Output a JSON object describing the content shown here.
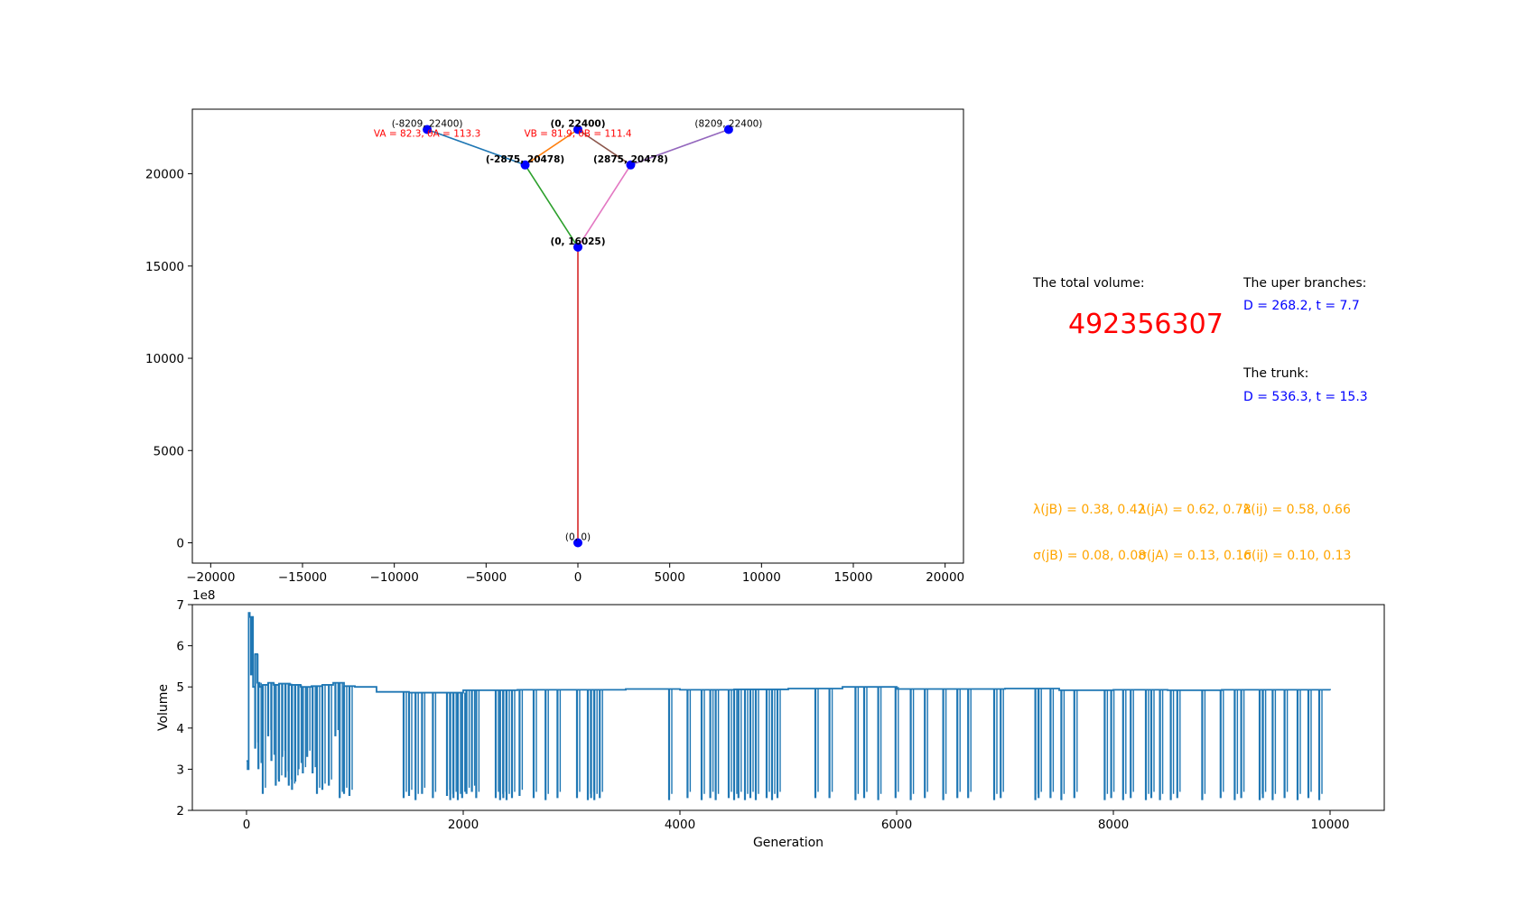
{
  "chart_data": [
    {
      "type": "network",
      "xlim": [
        -21000,
        21000
      ],
      "ylim": [
        -1100,
        23500
      ],
      "xticks": [
        -20000,
        -15000,
        -10000,
        -5000,
        0,
        5000,
        10000,
        15000,
        20000
      ],
      "xtick_labels": [
        "−20000",
        "−15000",
        "−10000",
        "−5000",
        "0",
        "5000",
        "10000",
        "15000",
        "20000"
      ],
      "yticks": [
        0,
        5000,
        10000,
        15000,
        20000
      ],
      "ytick_labels": [
        "0",
        "5000",
        "10000",
        "15000",
        "20000"
      ],
      "nodes": [
        {
          "x": 0,
          "y": 0,
          "label": "(0, 0)",
          "bold": false
        },
        {
          "x": 0,
          "y": 16025,
          "label": "(0, 16025)",
          "bold": true
        },
        {
          "x": -2875,
          "y": 20478,
          "label": "(-2875, 20478)",
          "bold": true
        },
        {
          "x": 2875,
          "y": 20478,
          "label": "(2875, 20478)",
          "bold": true
        },
        {
          "x": -8209,
          "y": 22400,
          "label": "(-8209, 22400)",
          "bold": false
        },
        {
          "x": 0,
          "y": 22400,
          "label": "(0, 22400)",
          "bold": true
        },
        {
          "x": 8209,
          "y": 22400,
          "label": "(8209, 22400)",
          "bold": false
        }
      ],
      "edges": [
        {
          "from": [
            0,
            0
          ],
          "to": [
            0,
            16025
          ],
          "color": "#d62728"
        },
        {
          "from": [
            0,
            16025
          ],
          "to": [
            -2875,
            20478
          ],
          "color": "#2ca02c"
        },
        {
          "from": [
            0,
            16025
          ],
          "to": [
            2875,
            20478
          ],
          "color": "#e377c2"
        },
        {
          "from": [
            -2875,
            20478
          ],
          "to": [
            -8209,
            22400
          ],
          "color": "#1f77b4"
        },
        {
          "from": [
            -2875,
            20478
          ],
          "to": [
            0,
            22400
          ],
          "color": "#ff7f0e"
        },
        {
          "from": [
            2875,
            20478
          ],
          "to": [
            0,
            22400
          ],
          "color": "#8c564b"
        },
        {
          "from": [
            2875,
            20478
          ],
          "to": [
            8209,
            22400
          ],
          "color": "#9467bd"
        }
      ],
      "annotations": [
        {
          "text": "VA = 82.3, θA = 113.3",
          "x": -8209,
          "y": 22400,
          "color": "#ff0000"
        },
        {
          "text": "VB = 81.9, θB = 111.4",
          "x": 0,
          "y": 22400,
          "color": "#ff0000"
        }
      ],
      "node_color": "#0000ff"
    },
    {
      "type": "line",
      "xlabel": "Generation",
      "ylabel": "Volume",
      "xlim": [
        -500,
        10500
      ],
      "ylim": [
        2,
        7
      ],
      "y_scale_label": "1e8",
      "xticks": [
        0,
        2000,
        4000,
        6000,
        8000,
        10000
      ],
      "xtick_labels": [
        "0",
        "2000",
        "4000",
        "6000",
        "8000",
        "10000"
      ],
      "yticks": [
        2,
        3,
        4,
        5,
        6,
        7
      ],
      "ytick_labels": [
        "2",
        "3",
        "4",
        "5",
        "6",
        "7"
      ],
      "color": "#1f77b4",
      "series": [
        {
          "x": [
            0,
            10,
            20,
            30,
            40,
            50,
            60,
            80,
            100,
            120,
            150,
            200,
            250,
            300,
            400,
            500,
            600,
            700,
            800,
            900,
            1000,
            1200,
            1500,
            2000,
            2500,
            3000,
            3500,
            4000,
            4500,
            5000,
            5500,
            6000,
            6500,
            7000,
            7500,
            8000,
            8500,
            9000,
            9500,
            10000
          ],
          "y": [
            3.2,
            3.0,
            6.8,
            6.7,
            5.3,
            6.7,
            5.0,
            5.8,
            5.1,
            5.0,
            5.05,
            5.1,
            5.05,
            5.08,
            5.05,
            5.0,
            5.02,
            5.05,
            5.1,
            5.02,
            5.0,
            4.88,
            4.86,
            4.92,
            4.93,
            4.93,
            4.95,
            4.93,
            4.94,
            4.96,
            5.0,
            4.95,
            4.95,
            4.96,
            4.92,
            4.93,
            4.92,
            4.93,
            4.93,
            4.92
          ],
          "dips": [
            [
              80,
              3.5
            ],
            [
              110,
              3.0
            ],
            [
              150,
              2.4
            ],
            [
              200,
              3.8
            ],
            [
              230,
              3.2
            ],
            [
              270,
              2.6
            ],
            [
              300,
              2.7
            ],
            [
              330,
              3.3
            ],
            [
              360,
              2.8
            ],
            [
              390,
              2.6
            ],
            [
              420,
              2.5
            ],
            [
              450,
              2.7
            ],
            [
              480,
              3.0
            ],
            [
              520,
              2.9
            ],
            [
              560,
              3.3
            ],
            [
              610,
              2.9
            ],
            [
              650,
              2.4
            ],
            [
              700,
              2.5
            ],
            [
              760,
              2.6
            ],
            [
              820,
              3.8
            ],
            [
              860,
              2.3
            ],
            [
              900,
              2.4
            ],
            [
              950,
              2.35
            ],
            [
              1450,
              2.3
            ],
            [
              1500,
              2.35
            ],
            [
              1560,
              2.25
            ],
            [
              1620,
              2.4
            ],
            [
              1720,
              2.3
            ],
            [
              1850,
              2.35
            ],
            [
              1880,
              2.25
            ],
            [
              1910,
              2.3
            ],
            [
              1950,
              2.25
            ],
            [
              1990,
              2.3
            ],
            [
              2030,
              2.4
            ],
            [
              2080,
              2.45
            ],
            [
              2120,
              2.3
            ],
            [
              2300,
              2.3
            ],
            [
              2340,
              2.25
            ],
            [
              2370,
              2.3
            ],
            [
              2400,
              2.25
            ],
            [
              2450,
              2.3
            ],
            [
              2520,
              2.35
            ],
            [
              2650,
              2.3
            ],
            [
              2760,
              2.25
            ],
            [
              2870,
              2.3
            ],
            [
              3050,
              2.3
            ],
            [
              3150,
              2.25
            ],
            [
              3180,
              2.3
            ],
            [
              3210,
              2.25
            ],
            [
              3260,
              2.3
            ],
            [
              3900,
              2.25
            ],
            [
              4070,
              2.3
            ],
            [
              4200,
              2.25
            ],
            [
              4280,
              2.3
            ],
            [
              4330,
              2.25
            ],
            [
              4450,
              2.3
            ],
            [
              4500,
              2.25
            ],
            [
              4540,
              2.3
            ],
            [
              4600,
              2.25
            ],
            [
              4650,
              2.3
            ],
            [
              4700,
              2.25
            ],
            [
              4800,
              2.3
            ],
            [
              4850,
              2.25
            ],
            [
              4900,
              2.3
            ],
            [
              5250,
              2.3
            ],
            [
              5380,
              2.3
            ],
            [
              5620,
              2.25
            ],
            [
              5700,
              2.3
            ],
            [
              5830,
              2.25
            ],
            [
              5990,
              2.3
            ],
            [
              6130,
              2.25
            ],
            [
              6260,
              2.3
            ],
            [
              6430,
              2.25
            ],
            [
              6560,
              2.3
            ],
            [
              6660,
              2.3
            ],
            [
              6900,
              2.25
            ],
            [
              6960,
              2.3
            ],
            [
              7280,
              2.25
            ],
            [
              7310,
              2.3
            ],
            [
              7420,
              2.3
            ],
            [
              7520,
              2.25
            ],
            [
              7640,
              2.3
            ],
            [
              7920,
              2.25
            ],
            [
              7980,
              2.3
            ],
            [
              8090,
              2.25
            ],
            [
              8160,
              2.3
            ],
            [
              8300,
              2.25
            ],
            [
              8350,
              2.3
            ],
            [
              8430,
              2.25
            ],
            [
              8530,
              2.25
            ],
            [
              8590,
              2.3
            ],
            [
              8820,
              2.25
            ],
            [
              8990,
              2.3
            ],
            [
              9120,
              2.25
            ],
            [
              9180,
              2.3
            ],
            [
              9350,
              2.25
            ],
            [
              9380,
              2.3
            ],
            [
              9470,
              2.25
            ],
            [
              9580,
              2.3
            ],
            [
              9700,
              2.25
            ],
            [
              9800,
              2.3
            ],
            [
              9900,
              2.25
            ]
          ]
        }
      ]
    }
  ],
  "panel": {
    "total_volume_label": "The total volume:",
    "total_volume_value": "492356307",
    "upper_branches_label": "The uper branches:",
    "upper_branches_value": "D = 268.2, t = 7.7",
    "trunk_label": "The trunk:",
    "trunk_value": "D = 536.3, t = 15.3",
    "lambda_jB": "λ(jB) = 0.38, 0.42",
    "lambda_jA": "λ(jA) = 0.62, 0.78",
    "lambda_ij": "λ(ij) = 0.58, 0.66",
    "sigma_jB": "σ(jB) = 0.08, 0.08",
    "sigma_jA": "σ(jA) = 0.13, 0.16",
    "sigma_ij": "σ(ij) = 0.10, 0.13"
  }
}
